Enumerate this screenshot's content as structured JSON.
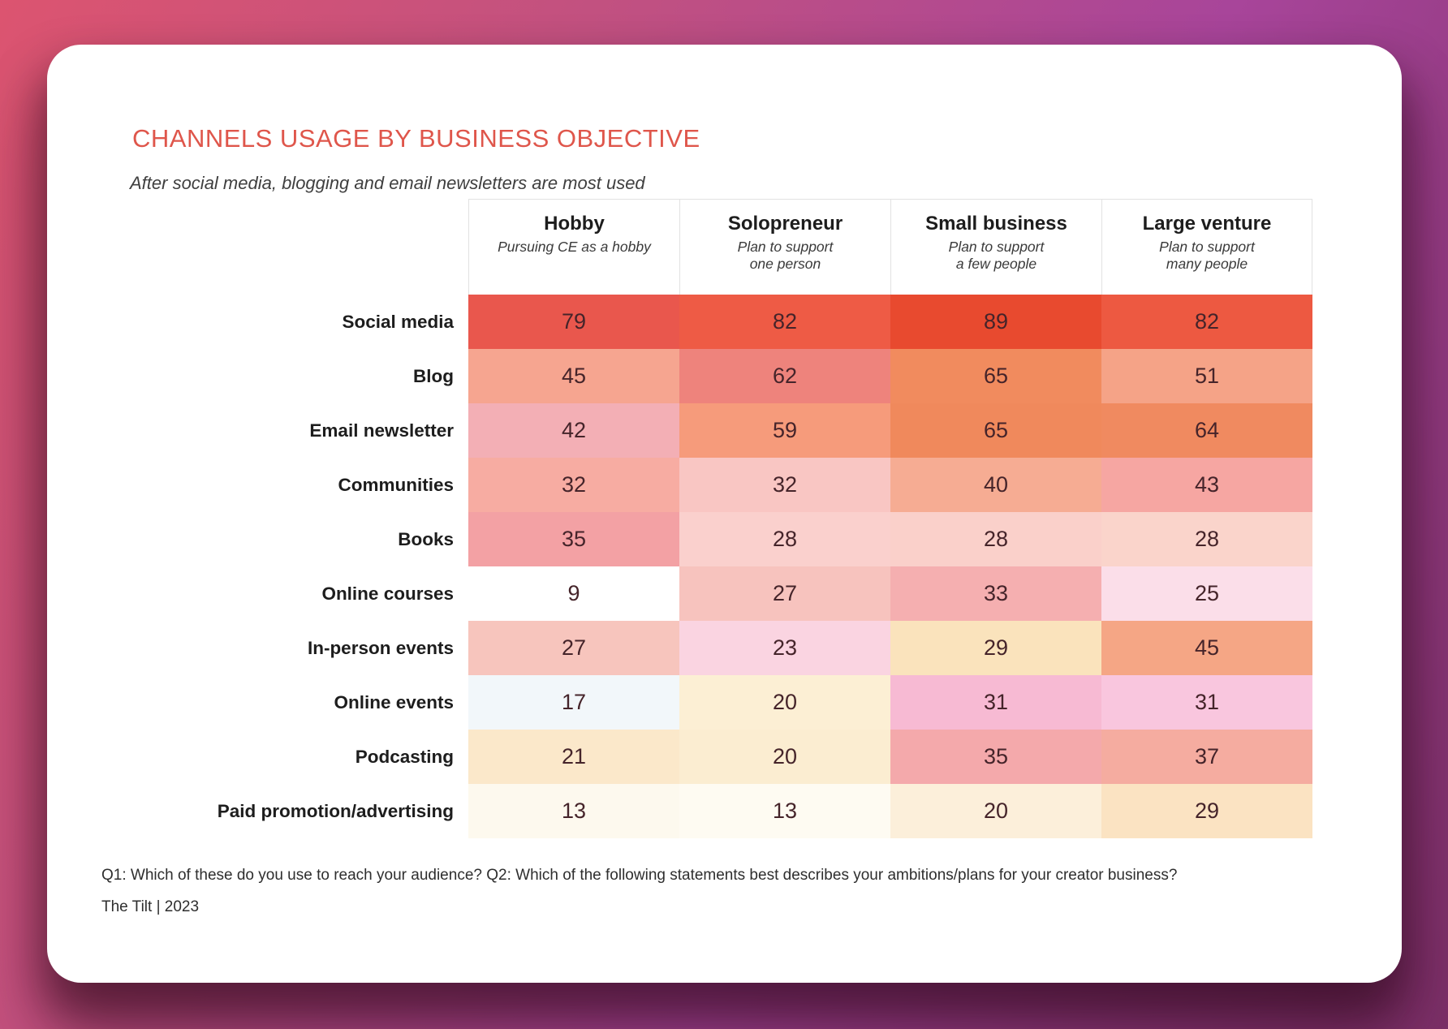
{
  "page": {
    "background_gradient": [
      "#DC5470",
      "#A8459A",
      "#7C3068"
    ],
    "card_background": "#FFFFFF"
  },
  "header": {
    "title": "CHANNELS USAGE BY BUSINESS OBJECTIVE",
    "title_color": "#DF564B",
    "subtitle": "After social media, blogging and email newsletters are most used"
  },
  "footer": {
    "footnote": "Q1: Which of these do you use to reach your audience? Q2: Which of the following statements best describes your ambitions/plans for your creator business?",
    "source": "The Tilt  |  2023"
  },
  "chart_data": {
    "type": "heatmap",
    "title": "Channels usage by business objective",
    "legend_position": "none",
    "value_range": [
      0,
      100
    ],
    "value_unit": "percent",
    "columns": [
      {
        "label": "Hobby",
        "sublabel": "Pursuing CE as a hobby"
      },
      {
        "label": "Solopreneur",
        "sublabel": "Plan to support\none person"
      },
      {
        "label": "Small business",
        "sublabel": "Plan to support\na few people"
      },
      {
        "label": "Large venture",
        "sublabel": "Plan to support\nmany people"
      }
    ],
    "rows": [
      "Social media",
      "Blog",
      "Email newsletter",
      "Communities",
      "Books",
      "Online courses",
      "In-person events",
      "Online events",
      "Podcasting",
      "Paid promotion/advertising"
    ],
    "values": [
      [
        79,
        82,
        89,
        82
      ],
      [
        45,
        62,
        65,
        51
      ],
      [
        42,
        59,
        65,
        64
      ],
      [
        32,
        32,
        40,
        43
      ],
      [
        35,
        28,
        28,
        28
      ],
      [
        9,
        27,
        33,
        25
      ],
      [
        27,
        23,
        29,
        45
      ],
      [
        17,
        20,
        31,
        31
      ],
      [
        21,
        20,
        35,
        37
      ],
      [
        13,
        13,
        20,
        29
      ]
    ],
    "cell_colors": [
      [
        "#E9574D",
        "#EE5B45",
        "#E84A2F",
        "#ED5941"
      ],
      [
        "#F6A590",
        "#EE837C",
        "#F18B5E",
        "#F5A387"
      ],
      [
        "#F3AFB5",
        "#F69B7B",
        "#F0895C",
        "#F08A60"
      ],
      [
        "#F7ACA2",
        "#F9C6C3",
        "#F6AC93",
        "#F6A6A2"
      ],
      [
        "#F3A1A4",
        "#FAD0CD",
        "#FAD0CA",
        "#FAD4CB"
      ],
      [
        "#FFFFFF",
        "#F7C3BE",
        "#F5AFB0",
        "#FBDEE9"
      ],
      [
        "#F7C5BD",
        "#FAD4E1",
        "#FAE3BC",
        "#F5A685"
      ],
      [
        "#F2F7FA",
        "#FCEFD4",
        "#F7BAD3",
        "#F9C6DE"
      ],
      [
        "#FBE8CA",
        "#FBEDD1",
        "#F4A9AB",
        "#F5ACA0"
      ],
      [
        "#FDF9EE",
        "#FEFBF2",
        "#FCEFDA",
        "#FBE3C2"
      ]
    ],
    "value_text_color": "#45242A"
  }
}
